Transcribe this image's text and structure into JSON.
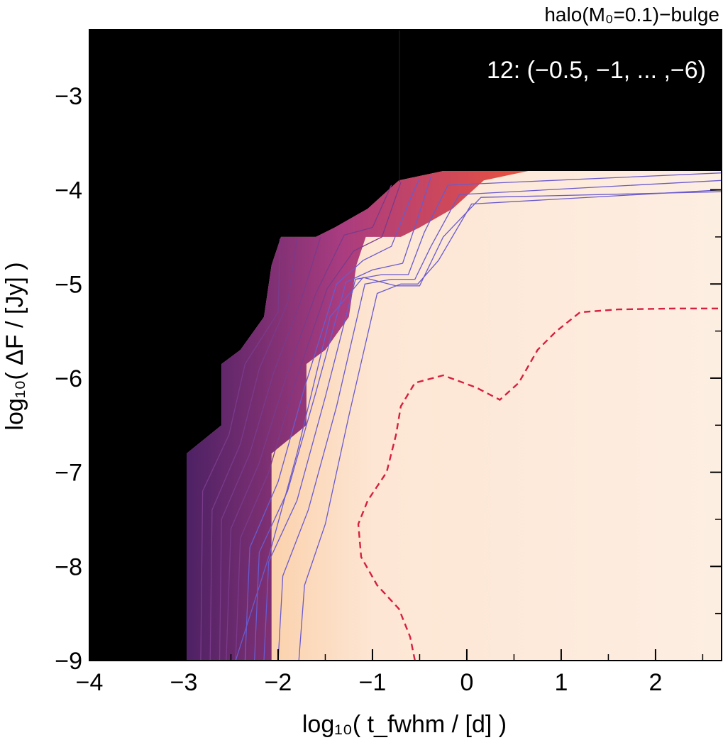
{
  "chart_data": {
    "type": "heatmap",
    "title": "halo(M₀=0.1)−bulge",
    "annotation": "12: (−0.5, −1, ... ,−6)",
    "xlabel": "log₁₀( t_fwhm / [d] )",
    "ylabel": "log₁₀( ΔF / [Jy] )",
    "xlim": [
      -4,
      2.7
    ],
    "ylim": [
      -9,
      -2.3
    ],
    "xticks": [
      -4,
      -3,
      -2,
      -1,
      0,
      1,
      2
    ],
    "xtick_labels": [
      "−4",
      "−3",
      "−2",
      "−1",
      "0",
      "1",
      "2"
    ],
    "yticks": [
      -9,
      -8,
      -7,
      -6,
      -5,
      -4,
      -3
    ],
    "ytick_labels": [
      "−9",
      "−8",
      "−7",
      "−6",
      "−5",
      "−4",
      "−3"
    ],
    "grid": false,
    "colors": {
      "no_data": "#000000",
      "fill_high": "#fdeee2",
      "fill_mid": "#f8b070",
      "fill_low": "#e04020",
      "edge": "#7a2a8a",
      "contour": "#6a5acd",
      "dashed_contour": "#d62040"
    },
    "boundary": [
      [
        -2.97,
        -9
      ],
      [
        -2.97,
        -6.8
      ],
      [
        -2.6,
        -6.5
      ],
      [
        -2.6,
        -5.85
      ],
      [
        -2.4,
        -5.7
      ],
      [
        -2.15,
        -5.35
      ],
      [
        -2.07,
        -4.8
      ],
      [
        -1.97,
        -4.5
      ],
      [
        -1.6,
        -4.5
      ],
      [
        -1.4,
        -4.4
      ],
      [
        -1.05,
        -4.2
      ],
      [
        -0.72,
        -3.9
      ],
      [
        -0.25,
        -3.8
      ],
      [
        2.7,
        -3.8
      ]
    ],
    "contours": [
      [
        [
          -2.82,
          -9
        ],
        [
          -2.8,
          -7.2
        ],
        [
          -2.52,
          -6.6
        ],
        [
          -2.35,
          -5.85
        ],
        [
          -2.0,
          -5.3
        ],
        [
          -1.98,
          -4.52
        ]
      ],
      [
        [
          -2.72,
          -9
        ],
        [
          -2.7,
          -7.4
        ],
        [
          -2.4,
          -6.7
        ],
        [
          -2.2,
          -5.9
        ],
        [
          -1.9,
          -5.2
        ],
        [
          -1.8,
          -4.52
        ]
      ],
      [
        [
          -2.62,
          -9
        ],
        [
          -2.6,
          -7.5
        ],
        [
          -2.3,
          -6.8
        ],
        [
          -2.05,
          -5.95
        ],
        [
          -1.75,
          -5.15
        ],
        [
          -1.55,
          -4.5
        ]
      ],
      [
        [
          -2.55,
          -9
        ],
        [
          -2.5,
          -7.6
        ],
        [
          -2.2,
          -6.9
        ],
        [
          -1.92,
          -6.0
        ],
        [
          -1.6,
          -5.1
        ],
        [
          -1.3,
          -4.48
        ],
        [
          -1.0,
          -4.4
        ],
        [
          -0.8,
          -3.95
        ]
      ],
      [
        [
          -2.45,
          -9
        ],
        [
          -2.4,
          -7.7
        ],
        [
          -2.1,
          -7.0
        ],
        [
          -1.82,
          -6.05
        ],
        [
          -1.48,
          -5.05
        ],
        [
          -1.2,
          -4.65
        ],
        [
          -0.9,
          -4.5
        ],
        [
          -0.7,
          -3.92
        ]
      ],
      [
        [
          -2.35,
          -9
        ],
        [
          -2.3,
          -7.8
        ],
        [
          -2.0,
          -7.1
        ],
        [
          -1.72,
          -6.1
        ],
        [
          -1.38,
          -5.0
        ],
        [
          -1.1,
          -4.75
        ],
        [
          -0.8,
          -4.6
        ],
        [
          -0.6,
          -4.1
        ],
        [
          -0.5,
          -3.88
        ]
      ],
      [
        [
          -2.25,
          -9
        ],
        [
          -2.2,
          -7.85
        ],
        [
          -1.9,
          -7.2
        ],
        [
          -1.6,
          -6.15
        ],
        [
          -1.28,
          -4.98
        ],
        [
          -1.0,
          -4.85
        ],
        [
          -0.68,
          -4.78
        ],
        [
          -0.52,
          -4.3
        ],
        [
          -0.38,
          -3.86
        ]
      ],
      [
        [
          -2.15,
          -9
        ],
        [
          -2.1,
          -7.95
        ],
        [
          -1.8,
          -7.3
        ],
        [
          -1.5,
          -6.2
        ],
        [
          -1.18,
          -4.95
        ],
        [
          -0.9,
          -4.9
        ],
        [
          -0.62,
          -4.9
        ],
        [
          -0.45,
          -4.45
        ],
        [
          -0.2,
          -3.95
        ],
        [
          2.7,
          -3.82
        ]
      ],
      [
        [
          -2.0,
          -9
        ],
        [
          -1.95,
          -8.1
        ],
        [
          -1.68,
          -7.4
        ],
        [
          -1.38,
          -6.3
        ],
        [
          -1.08,
          -5.0
        ],
        [
          -0.8,
          -4.95
        ],
        [
          -0.55,
          -4.95
        ],
        [
          -0.38,
          -4.6
        ],
        [
          -0.08,
          -4.05
        ],
        [
          2.7,
          -3.9
        ]
      ],
      [
        [
          -1.78,
          -9
        ],
        [
          -1.72,
          -8.2
        ],
        [
          -1.5,
          -7.55
        ],
        [
          -1.25,
          -6.4
        ],
        [
          -0.95,
          -5.1
        ],
        [
          -0.7,
          -5.0
        ],
        [
          -0.52,
          -5.0
        ],
        [
          -0.3,
          -4.75
        ],
        [
          0.05,
          -4.15
        ],
        [
          2.7,
          -4.0
        ]
      ],
      [
        [
          -2.45,
          -9
        ],
        [
          -2.1,
          -7.9
        ],
        [
          -1.8,
          -6.8
        ],
        [
          -1.45,
          -5.35
        ],
        [
          -1.1,
          -4.93
        ],
        [
          -0.75,
          -5.02
        ],
        [
          -0.5,
          -5.02
        ],
        [
          -0.25,
          -4.5
        ],
        [
          0.15,
          -4.08
        ],
        [
          2.7,
          -4.02
        ]
      ]
    ],
    "dashed_contour": [
      [
        -0.55,
        -9
      ],
      [
        -0.6,
        -8.75
      ],
      [
        -0.72,
        -8.45
      ],
      [
        -0.95,
        -8.2
      ],
      [
        -1.12,
        -7.9
      ],
      [
        -1.15,
        -7.55
      ],
      [
        -1.05,
        -7.3
      ],
      [
        -0.85,
        -7.0
      ],
      [
        -0.75,
        -6.6
      ],
      [
        -0.7,
        -6.3
      ],
      [
        -0.55,
        -6.05
      ],
      [
        -0.25,
        -5.97
      ],
      [
        0.1,
        -6.1
      ],
      [
        0.35,
        -6.23
      ],
      [
        0.55,
        -6.05
      ],
      [
        0.75,
        -5.7
      ],
      [
        0.95,
        -5.5
      ],
      [
        1.2,
        -5.3
      ],
      [
        1.6,
        -5.27
      ],
      [
        2.2,
        -5.26
      ],
      [
        2.7,
        -5.26
      ]
    ]
  }
}
